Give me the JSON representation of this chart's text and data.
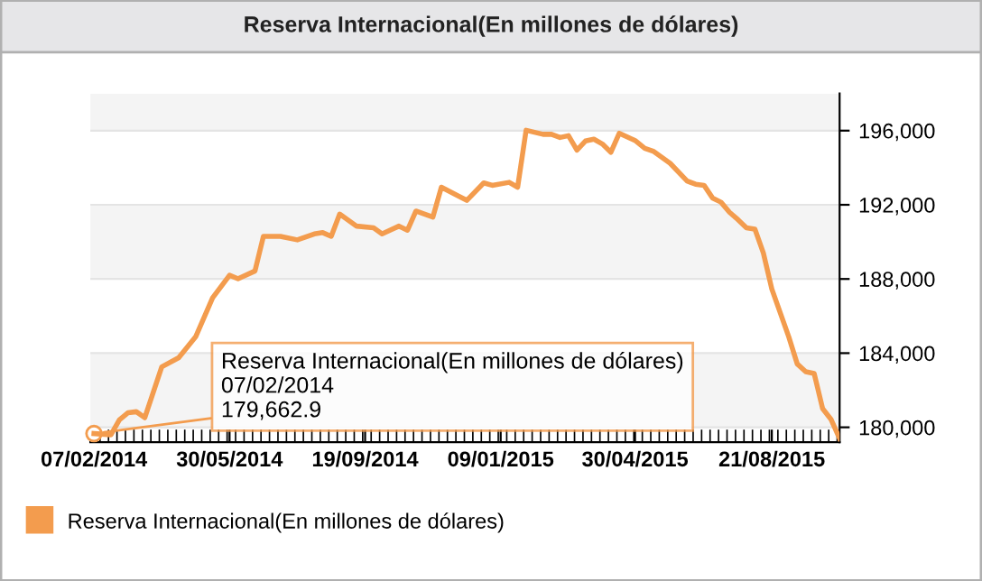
{
  "chart_data": {
    "type": "line",
    "title": "Reserva Internacional(En millones de dólares)",
    "x": [
      "2014-02-07",
      "2014-02-21",
      "2014-02-28",
      "2014-03-07",
      "2014-03-14",
      "2014-03-21",
      "2014-04-04",
      "2014-04-18",
      "2014-05-02",
      "2014-05-16",
      "2014-05-30",
      "2014-06-06",
      "2014-06-20",
      "2014-06-27",
      "2014-07-11",
      "2014-07-25",
      "2014-08-08",
      "2014-08-15",
      "2014-08-22",
      "2014-08-29",
      "2014-09-12",
      "2014-09-26",
      "2014-10-03",
      "2014-10-17",
      "2014-10-24",
      "2014-10-31",
      "2014-11-14",
      "2014-11-21",
      "2014-12-12",
      "2014-12-26",
      "2015-01-02",
      "2015-01-16",
      "2015-01-23",
      "2015-01-30",
      "2015-02-13",
      "2015-02-20",
      "2015-02-27",
      "2015-03-06",
      "2015-03-13",
      "2015-03-20",
      "2015-03-27",
      "2015-04-03",
      "2015-04-10",
      "2015-04-17",
      "2015-04-30",
      "2015-05-08",
      "2015-05-15",
      "2015-05-29",
      "2015-06-12",
      "2015-06-19",
      "2015-06-26",
      "2015-07-03",
      "2015-07-10",
      "2015-07-17",
      "2015-07-24",
      "2015-07-31",
      "2015-08-07",
      "2015-08-14",
      "2015-08-21",
      "2015-09-04",
      "2015-09-11",
      "2015-09-18",
      "2015-09-25",
      "2015-10-02",
      "2015-10-09",
      "2015-10-16"
    ],
    "series": [
      {
        "name": "Reserva Internacional(En millones de dólares)",
        "color": "#f39c4e",
        "values": [
          179662.9,
          179600,
          180400,
          180780,
          180840,
          180520,
          183260,
          183750,
          184880,
          186980,
          188200,
          188010,
          188430,
          190300,
          190300,
          190110,
          190430,
          190500,
          190300,
          191500,
          190850,
          190760,
          190430,
          190850,
          190630,
          191660,
          191340,
          192950,
          192240,
          193180,
          193050,
          193210,
          192950,
          196020,
          195800,
          195800,
          195630,
          195730,
          194950,
          195440,
          195540,
          195280,
          194830,
          195860,
          195470,
          195050,
          194890,
          194240,
          193280,
          193110,
          193050,
          192370,
          192140,
          191600,
          191200,
          190760,
          190690,
          189400,
          187460,
          184880,
          183420,
          183000,
          182900,
          181000,
          180420,
          179390
        ]
      }
    ],
    "xlim": [
      "2014-02-04",
      "2015-10-16"
    ],
    "xticks": [
      {
        "value": "2014-02-07",
        "label": "07/02/2014"
      },
      {
        "value": "2014-05-30",
        "label": "30/05/2014"
      },
      {
        "value": "2014-09-19",
        "label": "19/09/2014"
      },
      {
        "value": "2015-01-09",
        "label": "09/01/2015"
      },
      {
        "value": "2015-04-30",
        "label": "30/04/2015"
      },
      {
        "value": "2015-08-21",
        "label": "21/08/2015"
      }
    ],
    "ylim": [
      179200,
      198000
    ],
    "yticks": [
      {
        "value": 180000,
        "label": "180,000"
      },
      {
        "value": 184000,
        "label": "184,000"
      },
      {
        "value": 188000,
        "label": "188,000"
      },
      {
        "value": 192000,
        "label": "192,000"
      },
      {
        "value": 196000,
        "label": "196,000"
      }
    ],
    "grid": "y",
    "legend": "bottom left",
    "marker": "none",
    "line_style": "solid",
    "annotations": [
      {
        "text": "Reserva Internacional(En millones de dólares)\n07/02/2014\n179,662.9",
        "x": "2014-02-07",
        "y": 179662.9
      }
    ]
  }
}
